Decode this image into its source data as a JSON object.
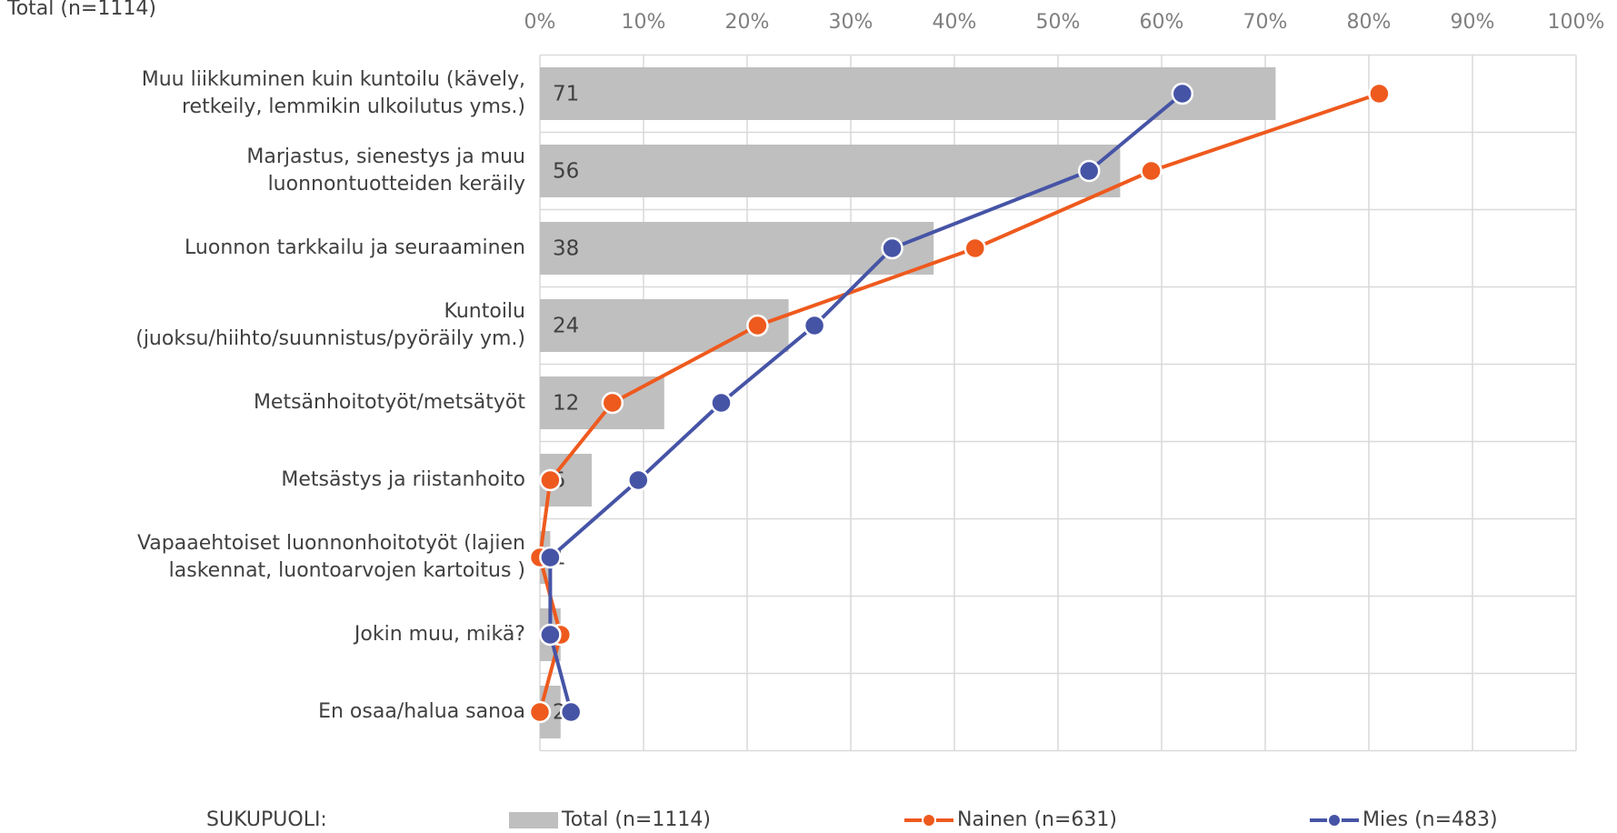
{
  "chart_data": {
    "type": "bar",
    "orientation": "horizontal",
    "title": "Total (n=1114)",
    "categories": [
      "Muu liikkuminen kuin kuntoilu (kävely,\nretkeily, lemmikin ulkoilutus yms.)",
      "Marjastus, sienestys ja muu\nluonnontuotteiden keräily",
      "Luonnon tarkkailu ja seuraaminen",
      "Kuntoilu\n(juoksu/hiihto/suunnistus/pyöräily ym.)",
      "Metsänhoitotyöt/metsätyöt",
      "Metsästys ja riistanhoito",
      "Vapaaehtoiset luonnonhoitotyöt (lajien\nlaskennat, luontoarvojen kartoitus )",
      "Jokin muu, mikä?",
      "En osaa/halua sanoa"
    ],
    "series": [
      {
        "name": "Total (n=1114)",
        "type": "bar",
        "color": "#bfbfbf",
        "values": [
          71,
          56,
          38,
          24,
          12,
          5,
          1,
          2,
          2
        ]
      },
      {
        "name": "Nainen (n=631)",
        "type": "line",
        "color": "#ee5a1e",
        "values": [
          81,
          59,
          42,
          21,
          7,
          1,
          0,
          2,
          0
        ]
      },
      {
        "name": "Mies (n=483)",
        "type": "line",
        "color": "#4654a6",
        "values": [
          62,
          53,
          34,
          26.5,
          17.5,
          9.5,
          1,
          1,
          3
        ]
      }
    ],
    "xlim": [
      0,
      100
    ],
    "xticks": [
      {
        "value": 0,
        "label": "0%"
      },
      {
        "value": 10,
        "label": "10%"
      },
      {
        "value": 20,
        "label": "20%"
      },
      {
        "value": 30,
        "label": "30%"
      },
      {
        "value": 40,
        "label": "40%"
      },
      {
        "value": 50,
        "label": "50%"
      },
      {
        "value": 60,
        "label": "60%"
      },
      {
        "value": 70,
        "label": "70%"
      },
      {
        "value": 80,
        "label": "80%"
      },
      {
        "value": 90,
        "label": "90%"
      },
      {
        "value": 100,
        "label": "100%"
      }
    ],
    "grid": true,
    "legend_title": "SUKUPUOLI:",
    "legend": "bottom"
  }
}
